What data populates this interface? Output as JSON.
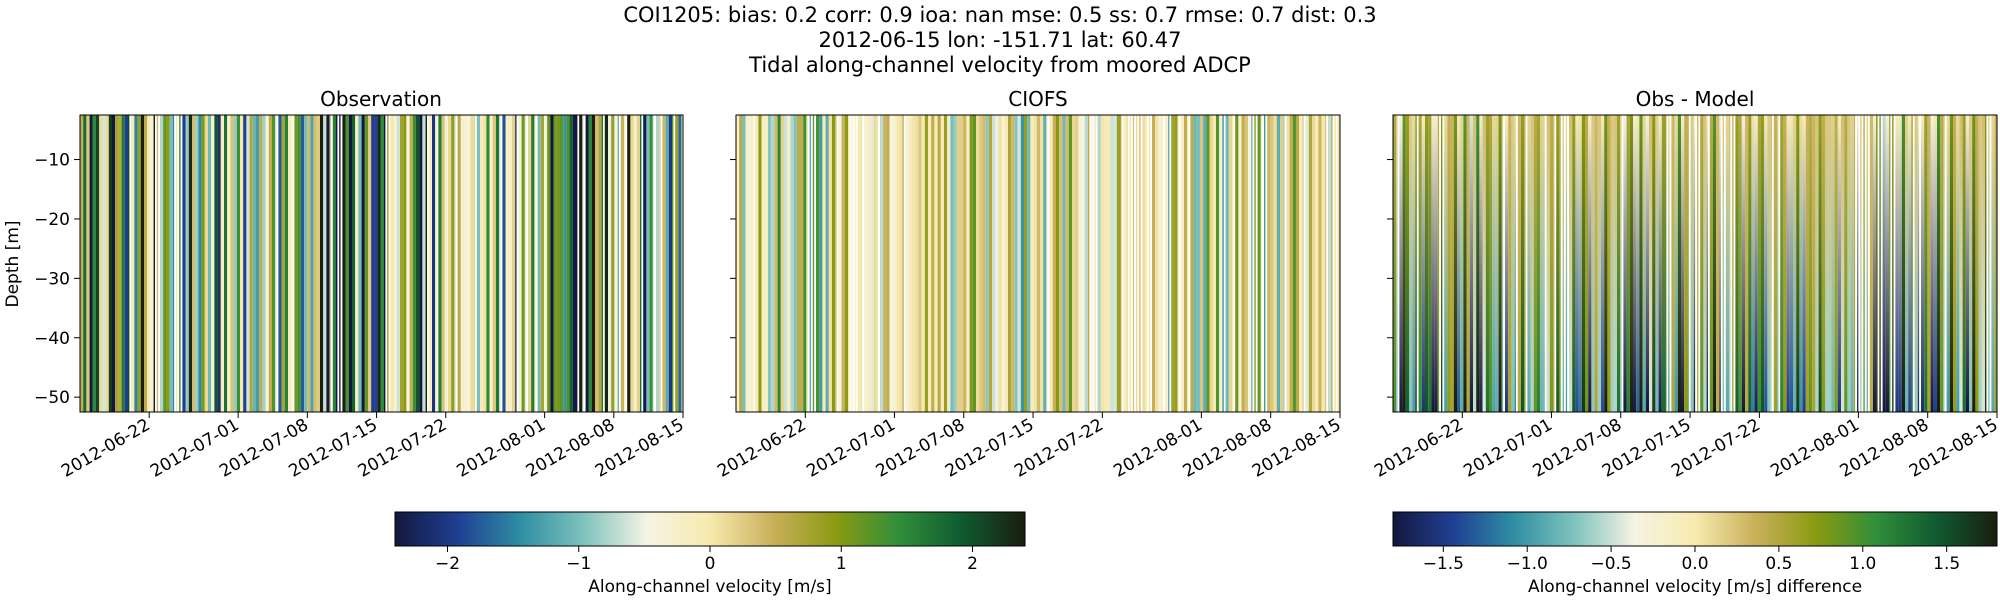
{
  "figure": {
    "title_lines": [
      "COI1205: bias: 0.2  corr: 0.9  ioa: nan  mse: 0.5  ss: 0.7  rmse: 0.7  dist: 0.3",
      "2012-06-15 lon: -151.71 lat: 60.47",
      "Tidal along-channel velocity from moored ADCP"
    ]
  },
  "chart_data": [
    {
      "type": "heatmap",
      "title": "Observation",
      "xlabel": "",
      "ylabel": "Depth [m]",
      "x_ticks": [
        "2012-06-22",
        "2012-07-01",
        "2012-07-08",
        "2012-07-15",
        "2012-07-22",
        "2012-08-01",
        "2012-08-08",
        "2012-08-15"
      ],
      "y_ticks": [
        -10,
        -20,
        -30,
        -40,
        -50
      ],
      "xlim": [
        "2012-06-15",
        "2012-08-15"
      ],
      "ylim": [
        -52.5,
        -2.5
      ],
      "colormap": "delta",
      "value_range": [
        -2.4,
        2.4
      ],
      "pattern": "dense alternating tidal stripes, large amplitude"
    },
    {
      "type": "heatmap",
      "title": "CIOFS",
      "xlabel": "",
      "ylabel": "",
      "x_ticks": [
        "2012-06-22",
        "2012-07-01",
        "2012-07-08",
        "2012-07-15",
        "2012-07-22",
        "2012-08-01",
        "2012-08-08",
        "2012-08-15"
      ],
      "y_ticks": [
        -10,
        -20,
        -30,
        -40,
        -50
      ],
      "xlim": [
        "2012-06-15",
        "2012-08-15"
      ],
      "ylim": [
        -52.5,
        -2.5
      ],
      "colormap": "delta",
      "value_range": [
        -2.4,
        2.4
      ],
      "pattern": "dense alternating tidal stripes, small amplitude"
    },
    {
      "type": "heatmap",
      "title": "Obs - Model",
      "xlabel": "",
      "ylabel": "",
      "x_ticks": [
        "2012-06-22",
        "2012-07-01",
        "2012-07-08",
        "2012-07-15",
        "2012-07-22",
        "2012-08-01",
        "2012-08-08",
        "2012-08-15"
      ],
      "y_ticks": [
        -10,
        -20,
        -30,
        -40,
        -50
      ],
      "xlim": [
        "2012-06-15",
        "2012-08-15"
      ],
      "ylim": [
        -52.5,
        -2.5
      ],
      "colormap": "delta",
      "value_range": [
        -1.8,
        1.8
      ],
      "pattern": "stripes lighter near surface, darker at depth"
    }
  ],
  "colorbars": [
    {
      "label": "Along-channel velocity [m/s]",
      "ticks": [
        "−2",
        "−1",
        "0",
        "1",
        "2"
      ],
      "tick_values": [
        -2,
        -1,
        0,
        1,
        2
      ],
      "range": [
        -2.4,
        2.4
      ]
    },
    {
      "label": "Along-channel velocity [m/s] difference",
      "ticks": [
        "−1.5",
        "−1.0",
        "−0.5",
        "0.0",
        "0.5",
        "1.0",
        "1.5"
      ],
      "tick_values": [
        -1.5,
        -1.0,
        -0.5,
        0.0,
        0.5,
        1.0,
        1.5
      ],
      "range": [
        -1.8,
        1.8
      ]
    }
  ],
  "colormap_stops": [
    "#12183d",
    "#203f93",
    "#2f8fa3",
    "#7fc2bd",
    "#f6f4e4",
    "#f7eaae",
    "#c9b05a",
    "#8b9a12",
    "#2f8f3a",
    "#0f5a30",
    "#1b1d0f"
  ]
}
